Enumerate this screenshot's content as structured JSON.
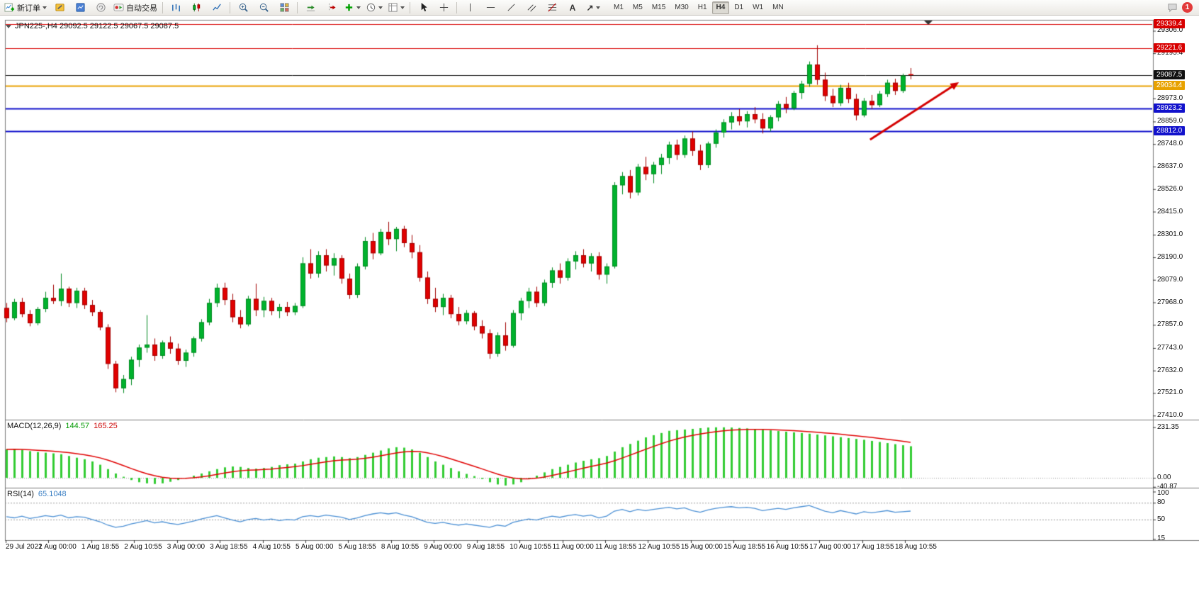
{
  "toolbar": {
    "new_order": "新订单",
    "autotrading": "自动交易",
    "text_tool_glyph": "A",
    "arrow_tool_glyph": "↗",
    "timeframes": [
      "M1",
      "M5",
      "M15",
      "M30",
      "H1",
      "H4",
      "D1",
      "W1",
      "MN"
    ],
    "active_timeframe": "H4",
    "notification_badge": "1"
  },
  "chart": {
    "info_line": "JPN225-,H4  29092.5 29122.5 29067.5 29087.5"
  },
  "indicators": {
    "macd": {
      "name": "MACD(12,26,9)",
      "main_value": "144.57",
      "signal_value": "165.25"
    },
    "rsi": {
      "name": "RSI(14)",
      "value": "65.1048"
    }
  },
  "chart_data": {
    "type": "candlestick",
    "symbol": "JPN225-",
    "timeframe": "H4",
    "current_ohlc": {
      "open": 29092.5,
      "high": 29122.5,
      "low": 29067.5,
      "close": 29087.5
    },
    "price_range": [
      27390,
      29360
    ],
    "price_axis_ticks": [
      "29306.0",
      "29195.4",
      "28973.0",
      "28859.0",
      "28748.0",
      "28637.0",
      "28526.0",
      "28415.0",
      "28301.0",
      "28190.0",
      "28079.0",
      "27968.0",
      "27857.0",
      "27743.0",
      "27632.0",
      "27521.0",
      "27410.0"
    ],
    "levels": [
      {
        "label": "29339.4",
        "price": 29339.4,
        "color": "#d80000",
        "line_width": 1
      },
      {
        "label": "29221.6",
        "price": 29221.6,
        "color": "#d80000",
        "line_width": 1
      },
      {
        "label": "29087.5",
        "price": 29087.5,
        "color": "#111111",
        "line_width": 1
      },
      {
        "label": "29034.4",
        "price": 29034.4,
        "color": "#e8a200",
        "line_width": 2
      },
      {
        "label": "28923.2",
        "price": 28923.2,
        "color": "#1212cc",
        "line_width": 2
      },
      {
        "label": "28812.0",
        "price": 28812.0,
        "color": "#1212cc",
        "line_width": 2
      }
    ],
    "time_labels": [
      "29 Jul 2022",
      "1 Aug 00:00",
      "1 Aug 18:55",
      "2 Aug 10:55",
      "3 Aug 00:00",
      "3 Aug 18:55",
      "4 Aug 10:55",
      "5 Aug 00:00",
      "5 Aug 18:55",
      "8 Aug 10:55",
      "9 Aug 00:00",
      "9 Aug 18:55",
      "10 Aug 10:55",
      "11 Aug 00:00",
      "11 Aug 18:55",
      "12 Aug 10:55",
      "15 Aug 00:00",
      "15 Aug 18:55",
      "16 Aug 10:55",
      "17 Aug 00:00",
      "17 Aug 18:55",
      "18 Aug 10:55"
    ],
    "candles": [
      [
        27940,
        27965,
        27870,
        27890
      ],
      [
        27890,
        27985,
        27880,
        27970
      ],
      [
        27970,
        27990,
        27895,
        27910
      ],
      [
        27910,
        27930,
        27850,
        27865
      ],
      [
        27865,
        27945,
        27855,
        27935
      ],
      [
        27935,
        28020,
        27920,
        27990
      ],
      [
        27990,
        28055,
        27960,
        27975
      ],
      [
        27975,
        28110,
        27950,
        28035
      ],
      [
        28035,
        28045,
        27945,
        27965
      ],
      [
        27965,
        28040,
        27940,
        28025
      ],
      [
        28025,
        28040,
        27935,
        27955
      ],
      [
        27955,
        27980,
        27900,
        27920
      ],
      [
        27920,
        27930,
        27830,
        27845
      ],
      [
        27845,
        27860,
        27640,
        27665
      ],
      [
        27665,
        27680,
        27525,
        27545
      ],
      [
        27545,
        27610,
        27521,
        27590
      ],
      [
        27590,
        27700,
        27560,
        27685
      ],
      [
        27685,
        27760,
        27650,
        27745
      ],
      [
        27745,
        27905,
        27720,
        27760
      ],
      [
        27760,
        27790,
        27680,
        27705
      ],
      [
        27705,
        27780,
        27690,
        27770
      ],
      [
        27770,
        27800,
        27715,
        27740
      ],
      [
        27740,
        27765,
        27660,
        27680
      ],
      [
        27680,
        27735,
        27650,
        27720
      ],
      [
        27720,
        27800,
        27700,
        27790
      ],
      [
        27790,
        27885,
        27775,
        27870
      ],
      [
        27870,
        27985,
        27855,
        27965
      ],
      [
        27965,
        28060,
        27945,
        28040
      ],
      [
        28040,
        28065,
        27955,
        27980
      ],
      [
        27980,
        28010,
        27870,
        27895
      ],
      [
        27895,
        27930,
        27840,
        27860
      ],
      [
        27860,
        28000,
        27850,
        27985
      ],
      [
        27985,
        28060,
        27900,
        27930
      ],
      [
        27930,
        27995,
        27895,
        27975
      ],
      [
        27975,
        27990,
        27905,
        27925
      ],
      [
        27925,
        27960,
        27890,
        27945
      ],
      [
        27945,
        27970,
        27900,
        27920
      ],
      [
        27920,
        27965,
        27905,
        27950
      ],
      [
        27950,
        28190,
        27940,
        28160
      ],
      [
        28160,
        28230,
        28085,
        28110
      ],
      [
        28110,
        28220,
        28090,
        28200
      ],
      [
        28200,
        28230,
        28120,
        28150
      ],
      [
        28150,
        28210,
        28100,
        28185
      ],
      [
        28185,
        28200,
        28060,
        28085
      ],
      [
        28085,
        28110,
        27985,
        28005
      ],
      [
        28005,
        28160,
        27990,
        28145
      ],
      [
        28145,
        28290,
        28130,
        28270
      ],
      [
        28270,
        28310,
        28180,
        28210
      ],
      [
        28210,
        28330,
        28200,
        28315
      ],
      [
        28315,
        28365,
        28250,
        28280
      ],
      [
        28280,
        28340,
        28220,
        28330
      ],
      [
        28330,
        28345,
        28240,
        28260
      ],
      [
        28260,
        28300,
        28185,
        28215
      ],
      [
        28215,
        28250,
        28070,
        28090
      ],
      [
        28090,
        28120,
        27960,
        27985
      ],
      [
        27985,
        28040,
        27920,
        27945
      ],
      [
        27945,
        28010,
        27905,
        27990
      ],
      [
        27990,
        28005,
        27890,
        27910
      ],
      [
        27910,
        27945,
        27855,
        27875
      ],
      [
        27875,
        27930,
        27860,
        27915
      ],
      [
        27915,
        27925,
        27830,
        27850
      ],
      [
        27850,
        27880,
        27790,
        27815
      ],
      [
        27815,
        27835,
        27690,
        27715
      ],
      [
        27715,
        27820,
        27700,
        27805
      ],
      [
        27805,
        27870,
        27730,
        27755
      ],
      [
        27755,
        27930,
        27745,
        27915
      ],
      [
        27915,
        27990,
        27880,
        27975
      ],
      [
        27975,
        28040,
        27940,
        28020
      ],
      [
        28020,
        28045,
        27945,
        27965
      ],
      [
        27965,
        28080,
        27950,
        28065
      ],
      [
        28065,
        28140,
        28040,
        28125
      ],
      [
        28125,
        28160,
        28060,
        28090
      ],
      [
        28090,
        28185,
        28075,
        28170
      ],
      [
        28170,
        28220,
        28130,
        28200
      ],
      [
        28200,
        28230,
        28140,
        28160
      ],
      [
        28160,
        28210,
        28120,
        28195
      ],
      [
        28195,
        28215,
        28080,
        28105
      ],
      [
        28105,
        28160,
        28060,
        28145
      ],
      [
        28145,
        28560,
        28135,
        28545
      ],
      [
        28545,
        28610,
        28500,
        28590
      ],
      [
        28590,
        28620,
        28480,
        28510
      ],
      [
        28510,
        28650,
        28495,
        28635
      ],
      [
        28635,
        28685,
        28570,
        28600
      ],
      [
        28600,
        28660,
        28555,
        28645
      ],
      [
        28645,
        28700,
        28600,
        28680
      ],
      [
        28680,
        28760,
        28650,
        28745
      ],
      [
        28745,
        28770,
        28670,
        28695
      ],
      [
        28695,
        28790,
        28680,
        28775
      ],
      [
        28775,
        28810,
        28690,
        28715
      ],
      [
        28715,
        28745,
        28620,
        28645
      ],
      [
        28645,
        28760,
        28630,
        28750
      ],
      [
        28750,
        28820,
        28730,
        28805
      ],
      [
        28805,
        28870,
        28780,
        28855
      ],
      [
        28855,
        28905,
        28820,
        28885
      ],
      [
        28885,
        28920,
        28840,
        28860
      ],
      [
        28860,
        28910,
        28830,
        28895
      ],
      [
        28895,
        28930,
        28850,
        28870
      ],
      [
        28870,
        28900,
        28800,
        28825
      ],
      [
        28825,
        28890,
        28810,
        28880
      ],
      [
        28880,
        28960,
        28860,
        28945
      ],
      [
        28945,
        28980,
        28900,
        28925
      ],
      [
        28925,
        29010,
        28915,
        29000
      ],
      [
        29000,
        29060,
        28970,
        29045
      ],
      [
        29045,
        29155,
        29030,
        29140
      ],
      [
        29140,
        29235,
        29040,
        29065
      ],
      [
        29065,
        29100,
        28960,
        28985
      ],
      [
        28985,
        29020,
        28930,
        28950
      ],
      [
        28950,
        29040,
        28935,
        29025
      ],
      [
        29025,
        29050,
        28950,
        28970
      ],
      [
        28970,
        28995,
        28865,
        28890
      ],
      [
        28890,
        28975,
        28880,
        28960
      ],
      [
        28960,
        28990,
        28920,
        28940
      ],
      [
        28940,
        29010,
        28930,
        28995
      ],
      [
        28995,
        29065,
        28980,
        29050
      ],
      [
        29050,
        29070,
        28990,
        29010
      ],
      [
        29010,
        29095,
        29000,
        29085
      ],
      [
        29092.5,
        29122.5,
        29067.5,
        29087.5
      ]
    ],
    "macd": {
      "range": [
        -45,
        266
      ],
      "histogram": [
        130,
        132,
        128,
        122,
        118,
        115,
        112,
        108,
        100,
        92,
        85,
        75,
        60,
        40,
        20,
        5,
        -10,
        -20,
        -25,
        -28,
        -25,
        -18,
        -10,
        0,
        10,
        20,
        30,
        40,
        48,
        52,
        50,
        45,
        42,
        45,
        50,
        58,
        62,
        65,
        75,
        85,
        92,
        95,
        98,
        95,
        90,
        95,
        105,
        115,
        125,
        135,
        140,
        138,
        130,
        115,
        95,
        75,
        60,
        45,
        30,
        18,
        8,
        -5,
        -20,
        -30,
        -35,
        -30,
        -20,
        -5,
        10,
        25,
        40,
        50,
        60,
        70,
        78,
        85,
        90,
        100,
        120,
        140,
        155,
        170,
        185,
        195,
        205,
        215,
        218,
        221,
        224,
        227,
        230,
        231,
        231,
        230,
        228,
        226,
        223,
        220,
        217,
        214,
        211,
        208,
        205,
        202,
        198,
        194,
        190,
        186,
        182,
        178,
        174,
        169,
        164,
        159,
        154,
        149,
        144.57
      ],
      "scale": [
        {
          "label": "231.35",
          "value": 231.35
        },
        {
          "label": "0.00",
          "value": 0
        },
        {
          "label": "-40.87",
          "value": -40.87
        }
      ]
    },
    "rsi": {
      "range": [
        13,
        107
      ],
      "values": [
        55,
        53,
        56,
        52,
        54,
        57,
        55,
        58,
        53,
        55,
        54,
        50,
        46,
        40,
        36,
        38,
        42,
        45,
        48,
        44,
        46,
        43,
        41,
        44,
        47,
        51,
        54,
        57,
        53,
        49,
        46,
        50,
        52,
        49,
        51,
        48,
        50,
        49,
        55,
        57,
        55,
        58,
        56,
        54,
        50,
        53,
        57,
        60,
        62,
        60,
        62,
        58,
        55,
        50,
        45,
        43,
        45,
        42,
        40,
        42,
        40,
        38,
        36,
        40,
        38,
        45,
        48,
        51,
        49,
        53,
        56,
        54,
        57,
        59,
        56,
        58,
        53,
        56,
        65,
        68,
        64,
        68,
        66,
        68,
        70,
        72,
        69,
        71,
        66,
        63,
        67,
        70,
        72,
        73,
        71,
        72,
        70,
        66,
        68,
        70,
        68,
        71,
        73,
        75,
        70,
        65,
        62,
        66,
        63,
        60,
        64,
        62,
        64,
        66,
        63,
        64,
        65.1
      ],
      "scale": [
        {
          "label": "100",
          "value": 100
        },
        {
          "label": "80",
          "value": 80
        },
        {
          "label": "50",
          "value": 50
        },
        {
          "label": "15",
          "value": 15
        }
      ],
      "dashed_levels": [
        80,
        50
      ]
    },
    "colors": {
      "bull": "#00b22d",
      "bull_border": "#008a20",
      "bear": "#e00000",
      "bear_border": "#a00000",
      "macd_histogram": "#33cc33",
      "macd_signal": "#e00000",
      "rsi_line": "#4a8fd4",
      "background": "#ffffff",
      "axis_text": "#111111"
    },
    "annotations": {
      "arrow": {
        "from_bar": 110.8,
        "from_price": 28770,
        "to_bar": 122.2,
        "to_price": 29053,
        "color": "#d40000",
        "width": 3
      }
    }
  }
}
